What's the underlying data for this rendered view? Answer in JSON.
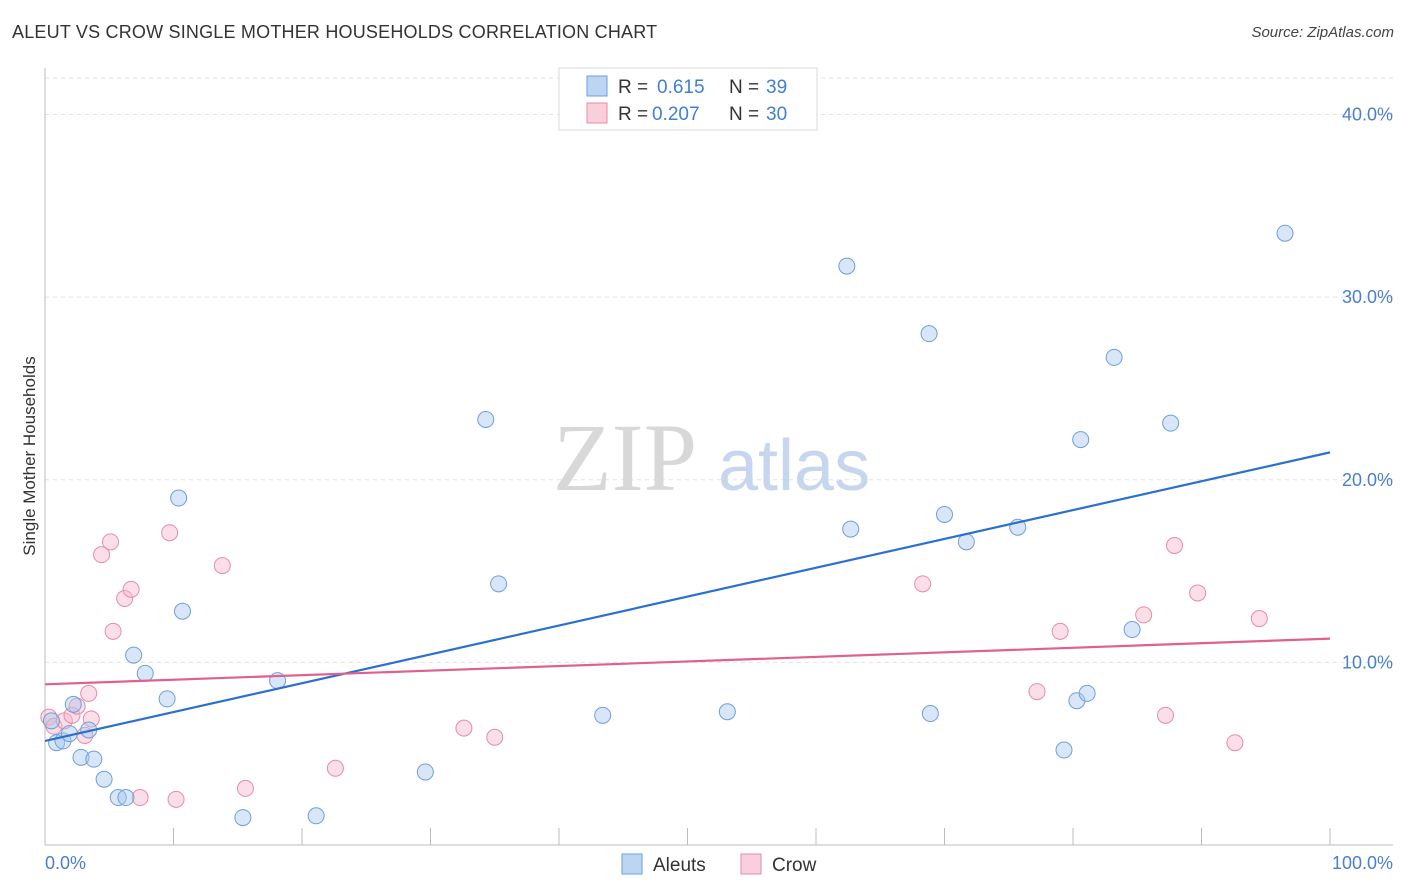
{
  "header": {
    "title": "ALEUT VS CROW SINGLE MOTHER HOUSEHOLDS CORRELATION CHART",
    "source": "Source: ZipAtlas.com"
  },
  "watermark": {
    "zip": "ZIP",
    "atlas": "atlas"
  },
  "legend": {
    "rows": [
      {
        "r_label": "R =",
        "r_value": "0.615",
        "n_label": "N =",
        "n_value": "39",
        "color": "#a8c8f0"
      },
      {
        "r_label": "R =",
        "r_value": "0.207",
        "n_label": "N =",
        "n_value": "30",
        "color": "#f6b8cb"
      }
    ]
  },
  "bottom_legend": {
    "items": [
      {
        "label": "Aleuts",
        "color": "#a8c8f0"
      },
      {
        "label": "Crow",
        "color": "#f6b8cb"
      }
    ]
  },
  "chart_data": {
    "type": "scatter",
    "title": "ALEUT VS CROW SINGLE MOTHER HOUSEHOLDS CORRELATION CHART",
    "xlabel": "",
    "ylabel": "Single Mother Households",
    "xlim": [
      0,
      100
    ],
    "ylim": [
      0,
      42
    ],
    "x_tick_labels": [
      "0.0%",
      "100.0%"
    ],
    "y_ticks": [
      10,
      20,
      30,
      40
    ],
    "y_tick_labels": [
      "10.0%",
      "20.0%",
      "30.0%",
      "40.0%"
    ],
    "grid": true,
    "legend_position": "top-center",
    "series": [
      {
        "name": "Aleuts",
        "color": "#a8c8f0",
        "stroke": "#6f9fd8",
        "trend_color": "#2b6fd0",
        "trend": [
          [
            0,
            5.7
          ],
          [
            100,
            21.5
          ]
        ],
        "points": [
          [
            0.5,
            6.8
          ],
          [
            0.9,
            5.6
          ],
          [
            1.4,
            5.7
          ],
          [
            1.9,
            6.1
          ],
          [
            2.2,
            7.7
          ],
          [
            2.8,
            4.8
          ],
          [
            3.4,
            6.3
          ],
          [
            3.8,
            4.7
          ],
          [
            4.6,
            3.6
          ],
          [
            5.7,
            2.6
          ],
          [
            6.3,
            2.6
          ],
          [
            6.9,
            10.4
          ],
          [
            7.8,
            9.4
          ],
          [
            9.5,
            8.0
          ],
          [
            10.4,
            19.0
          ],
          [
            10.7,
            12.8
          ],
          [
            15.4,
            1.5
          ],
          [
            18.1,
            9.0
          ],
          [
            21.1,
            1.6
          ],
          [
            29.6,
            4.0
          ],
          [
            34.3,
            23.3
          ],
          [
            35.3,
            14.3
          ],
          [
            43.4,
            7.1
          ],
          [
            53.1,
            7.3
          ],
          [
            62.4,
            31.7
          ],
          [
            62.7,
            17.3
          ],
          [
            68.8,
            28.0
          ],
          [
            68.9,
            7.2
          ],
          [
            70.0,
            18.1
          ],
          [
            71.7,
            16.6
          ],
          [
            75.7,
            17.4
          ],
          [
            79.3,
            5.2
          ],
          [
            80.3,
            7.9
          ],
          [
            80.6,
            22.2
          ],
          [
            81.1,
            8.3
          ],
          [
            83.2,
            26.7
          ],
          [
            84.6,
            11.8
          ],
          [
            87.6,
            23.1
          ],
          [
            96.5,
            33.5
          ]
        ]
      },
      {
        "name": "Crow",
        "color": "#f6b8cb",
        "stroke": "#e88aa8",
        "trend_color": "#e06090",
        "trend": [
          [
            0,
            8.8
          ],
          [
            100,
            11.3
          ]
        ],
        "points": [
          [
            0.3,
            7.0
          ],
          [
            0.7,
            6.5
          ],
          [
            1.5,
            6.8
          ],
          [
            2.1,
            7.1
          ],
          [
            2.5,
            7.6
          ],
          [
            3.1,
            6.0
          ],
          [
            3.4,
            8.3
          ],
          [
            3.6,
            6.9
          ],
          [
            4.4,
            15.9
          ],
          [
            5.1,
            16.6
          ],
          [
            5.3,
            11.7
          ],
          [
            6.2,
            13.5
          ],
          [
            6.7,
            14.0
          ],
          [
            7.4,
            2.6
          ],
          [
            9.7,
            17.1
          ],
          [
            10.2,
            2.5
          ],
          [
            13.8,
            15.3
          ],
          [
            15.6,
            3.1
          ],
          [
            22.6,
            4.2
          ],
          [
            32.6,
            6.4
          ],
          [
            35.0,
            5.9
          ],
          [
            68.3,
            14.3
          ],
          [
            77.2,
            8.4
          ],
          [
            79.0,
            11.7
          ],
          [
            85.5,
            12.6
          ],
          [
            87.2,
            7.1
          ],
          [
            87.9,
            16.4
          ],
          [
            89.7,
            13.8
          ],
          [
            92.6,
            5.6
          ],
          [
            94.5,
            12.4
          ]
        ]
      }
    ]
  }
}
